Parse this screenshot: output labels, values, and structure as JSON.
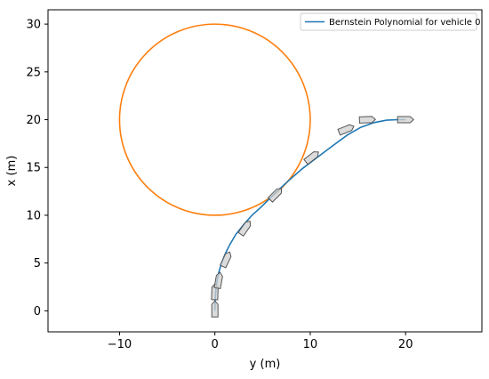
{
  "chart_data": {
    "type": "line",
    "xlabel": "y (m)",
    "ylabel": "x (m)",
    "xlim": [
      -17.5,
      28.0
    ],
    "ylim": [
      -2.2,
      31.5
    ],
    "xticks": [
      -10,
      0,
      10,
      20
    ],
    "yticks": [
      0,
      5,
      10,
      15,
      20,
      25,
      30
    ],
    "grid": false,
    "legend_position": "top-right",
    "series": [
      {
        "name": "Bernstein Polynomial for vehicle 0",
        "color": "#1f77b4",
        "x": [
          0.0,
          0.02,
          0.08,
          0.2,
          0.4,
          0.7,
          1.1,
          1.6,
          2.2,
          3.0,
          3.9,
          5.0,
          6.3,
          7.7,
          9.2,
          10.8,
          12.4,
          13.9,
          15.3,
          16.7,
          18.0,
          19.2,
          20.0
        ],
        "y": [
          0.0,
          1.0,
          2.0,
          3.0,
          4.0,
          5.0,
          6.0,
          7.0,
          8.0,
          9.0,
          10.0,
          11.0,
          12.3,
          13.6,
          14.9,
          16.1,
          17.3,
          18.4,
          19.2,
          19.7,
          19.95,
          20.0,
          20.0
        ]
      }
    ],
    "circle": {
      "center": [
        0,
        20
      ],
      "radius": 10,
      "color": "#ff7f0e"
    },
    "vehicles": [
      {
        "y": 0.0,
        "x": 0.2,
        "heading_deg": 90
      },
      {
        "y": 0.0,
        "x": 2.0,
        "heading_deg": 88
      },
      {
        "y": 0.4,
        "x": 3.2,
        "heading_deg": 80
      },
      {
        "y": 1.2,
        "x": 5.4,
        "heading_deg": 65
      },
      {
        "y": 3.2,
        "x": 8.7,
        "heading_deg": 55
      },
      {
        "y": 6.4,
        "x": 12.2,
        "heading_deg": 45
      },
      {
        "y": 10.2,
        "x": 16.1,
        "heading_deg": 38
      },
      {
        "y": 13.8,
        "x": 19.0,
        "heading_deg": 22
      },
      {
        "y": 16.0,
        "x": 20.0,
        "heading_deg": 2
      },
      {
        "y": 20.0,
        "x": 20.0,
        "heading_deg": 0
      }
    ]
  }
}
